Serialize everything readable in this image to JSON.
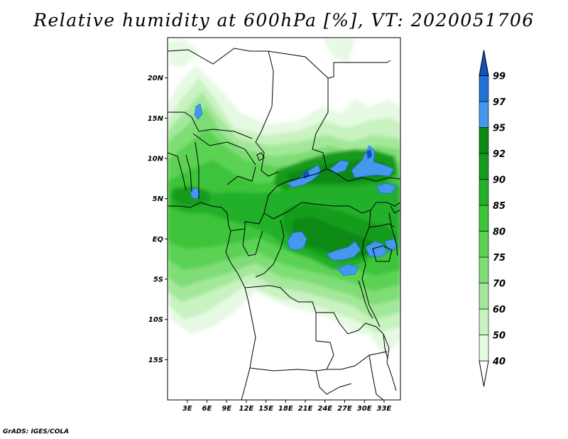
{
  "title": "Relative humidity at 600hPa [%], VT: 2020051706",
  "credit": "GrADS: IGES/COLA",
  "map": {
    "lon_range": [
      0,
      35.5
    ],
    "lat_range": [
      -20,
      25
    ],
    "lat_ticks": [
      {
        "value": 20,
        "label": "20N"
      },
      {
        "value": 15,
        "label": "15N"
      },
      {
        "value": 10,
        "label": "10N"
      },
      {
        "value": 5,
        "label": "5N"
      },
      {
        "value": 0,
        "label": "EQ"
      },
      {
        "value": -5,
        "label": "5S"
      },
      {
        "value": -10,
        "label": "10S"
      },
      {
        "value": -15,
        "label": "15S"
      }
    ],
    "lon_ticks": [
      {
        "value": 3,
        "label": "3E"
      },
      {
        "value": 6,
        "label": "6E"
      },
      {
        "value": 9,
        "label": "9E"
      },
      {
        "value": 12,
        "label": "12E"
      },
      {
        "value": 15,
        "label": "15E"
      },
      {
        "value": 18,
        "label": "18E"
      },
      {
        "value": 21,
        "label": "21E"
      },
      {
        "value": 24,
        "label": "24E"
      },
      {
        "value": 27,
        "label": "27E"
      },
      {
        "value": 30,
        "label": "30E"
      },
      {
        "value": 33,
        "label": "33E"
      }
    ]
  },
  "colorbar": {
    "levels": [
      "40",
      "50",
      "60",
      "70",
      "75",
      "80",
      "85",
      "90",
      "92",
      "95",
      "97",
      "99"
    ],
    "colors": [
      "#ffffff",
      "#e6f9e3",
      "#c8f2c0",
      "#a3e89a",
      "#7fdd76",
      "#5bd254",
      "#3ec43a",
      "#24b02a",
      "#159c1e",
      "#0a8914",
      "#4598ee",
      "#2471d8",
      "#1450c0"
    ]
  }
}
